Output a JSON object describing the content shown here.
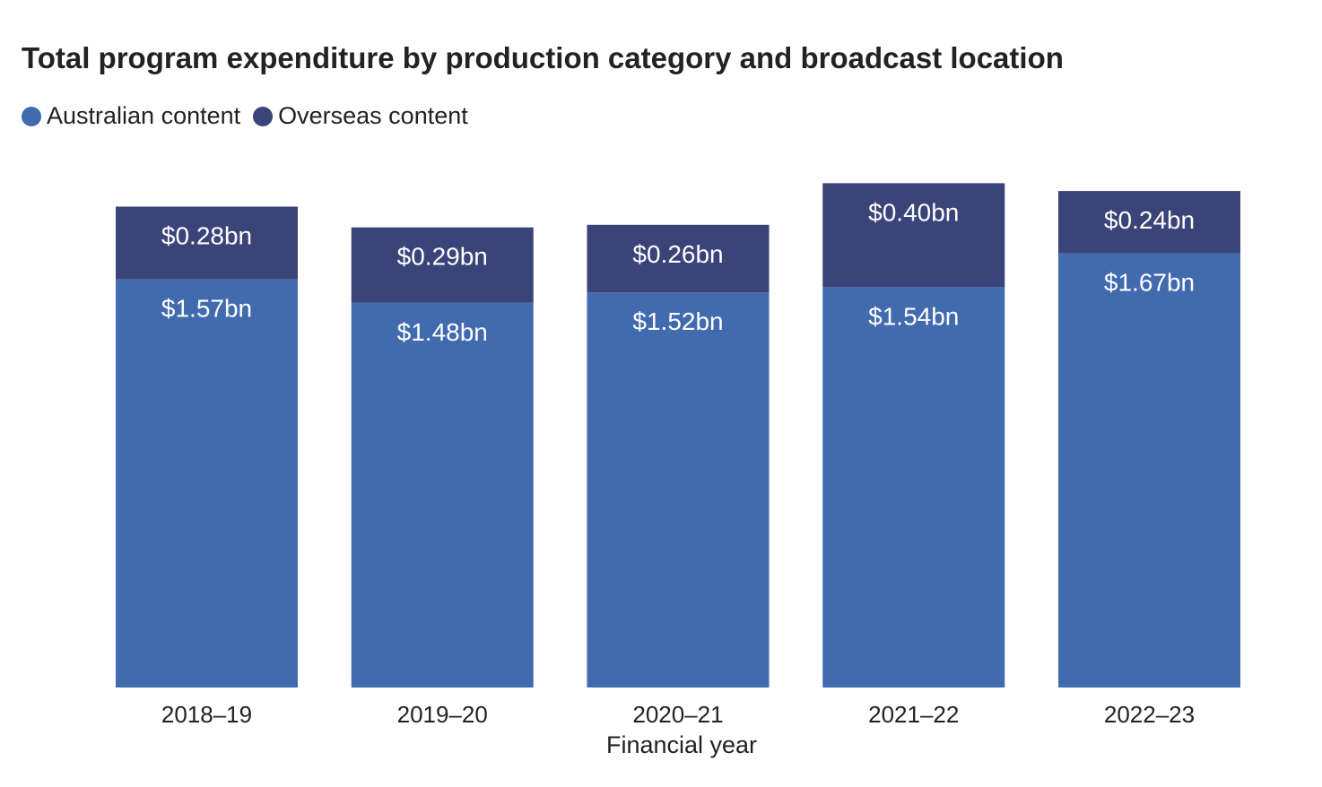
{
  "chart_data": {
    "type": "bar",
    "stacked": true,
    "title": "Total program expenditure by production category and broadcast location",
    "xlabel": "Financial year",
    "ylabel": "",
    "legend_position": "top-left",
    "grid": false,
    "categories": [
      "2018–19",
      "2019–20",
      "2020–21",
      "2021–22",
      "2022–23"
    ],
    "series": [
      {
        "name": "Australian content",
        "color": "#426aaf",
        "values": [
          1.57,
          1.48,
          1.52,
          1.54,
          1.67
        ],
        "labels": [
          "$1.57bn",
          "$1.48bn",
          "$1.52bn",
          "$1.54bn",
          "$1.67bn"
        ]
      },
      {
        "name": "Overseas content",
        "color": "#3a4479",
        "values": [
          0.28,
          0.29,
          0.26,
          0.4,
          0.24
        ],
        "labels": [
          "$0.28bn",
          "$0.29bn",
          "$0.26bn",
          "$0.40bn",
          "$0.24bn"
        ]
      }
    ],
    "ylim": [
      0,
      1.94
    ]
  }
}
